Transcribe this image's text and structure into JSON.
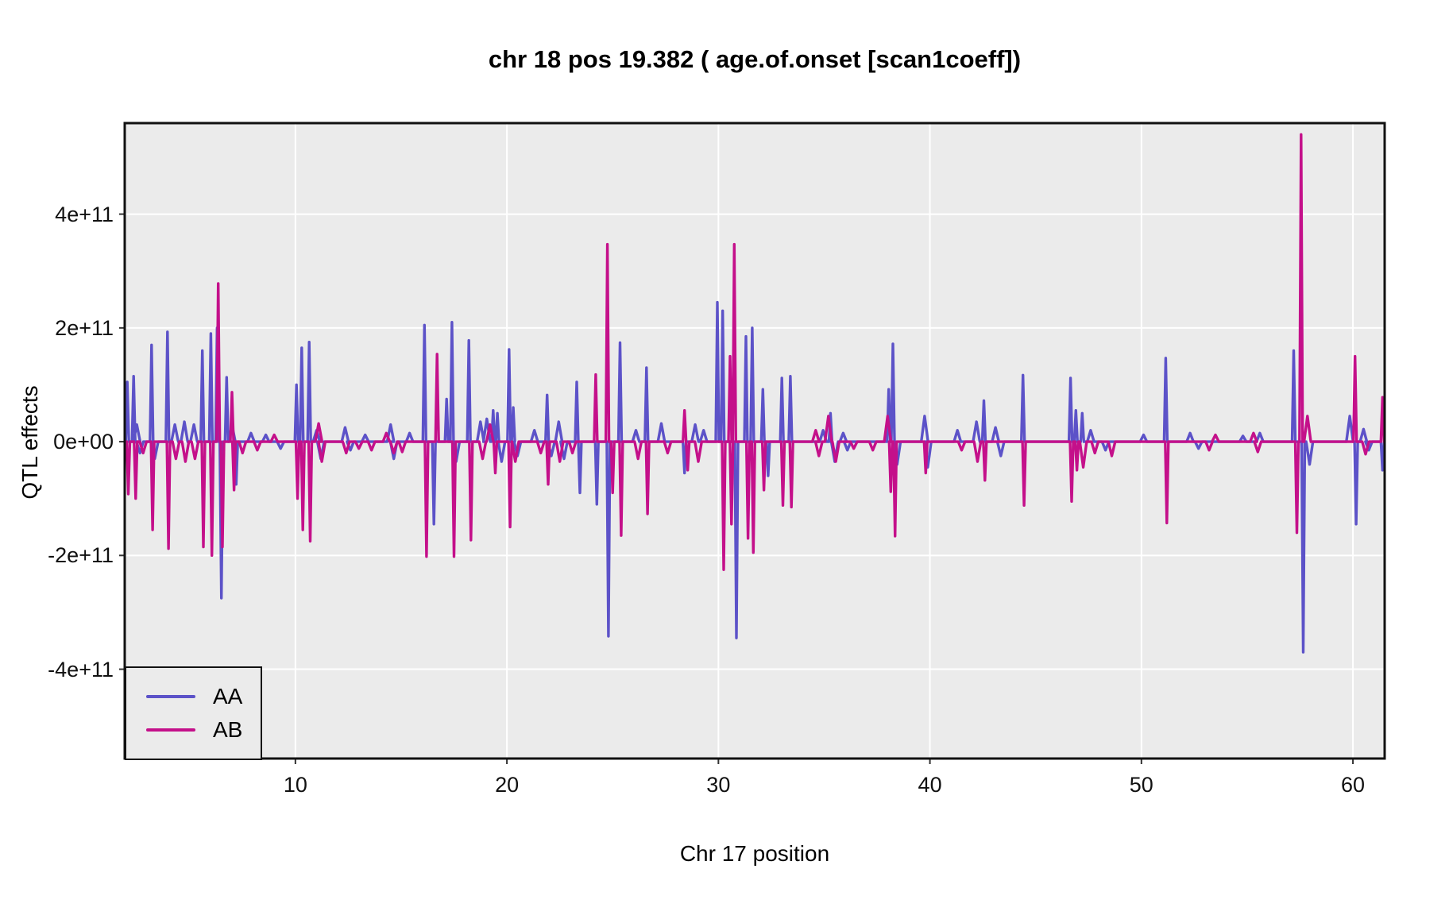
{
  "title": "chr 18 pos 19.382 ( age.of.onset  [scan1coeff])",
  "colors": {
    "background": "#FFFFFF",
    "panel_background": "#EBEBEB",
    "gridline": "#FFFFFF",
    "panel_border": "#111111",
    "tick_mark": "#333333",
    "text": "#000000",
    "series_aa": "#5C52C8",
    "series_ab": "#C4108A"
  },
  "chart_data": {
    "type": "line",
    "title": "chr 18 pos 19.382 ( age.of.onset  [scan1coeff])",
    "xlabel": "Chr 17 position",
    "ylabel": "QTL effects",
    "xlim": [
      1.93,
      61.5
    ],
    "ylim": [
      -557000000000.0,
      560000000000.0
    ],
    "x_ticks": [
      10,
      20,
      30,
      40,
      50,
      60
    ],
    "y_ticks": [
      {
        "value": 400000000000.0,
        "label": "4e+11"
      },
      {
        "value": 200000000000.0,
        "label": "2e+11"
      },
      {
        "value": 0,
        "label": "0e+00"
      },
      {
        "value": -200000000000.0,
        "label": "-2e+11"
      },
      {
        "value": -400000000000.0,
        "label": "-4e+11"
      }
    ],
    "grid": "major gridlines only, white on gray panel",
    "legend_position": "inside bottom-left",
    "baseline": 0,
    "series_encoding": "spikes = [x position in cM, peak QTL effect]; trace returns to 0 between spikes",
    "series": [
      {
        "name": "AA",
        "color": "#5C52C8",
        "spikes": [
          [
            2.05,
            105000000000.0
          ],
          [
            2.35,
            115000000000.0
          ],
          [
            2.5,
            30000000000.0
          ],
          [
            2.65,
            -20000000000.0
          ],
          [
            3.2,
            170000000000.0
          ],
          [
            3.35,
            -30000000000.0
          ],
          [
            3.95,
            193000000000.0
          ],
          [
            4.3,
            30000000000.0
          ],
          [
            4.75,
            35000000000.0
          ],
          [
            5.2,
            30000000000.0
          ],
          [
            5.6,
            160000000000.0
          ],
          [
            6.0,
            190000000000.0
          ],
          [
            6.3,
            200000000000.0
          ],
          [
            6.5,
            -275000000000.0
          ],
          [
            6.75,
            113000000000.0
          ],
          [
            7.0,
            30000000000.0
          ],
          [
            7.2,
            -75000000000.0
          ],
          [
            7.9,
            15000000000.0
          ],
          [
            8.6,
            12000000000.0
          ],
          [
            9.3,
            -12000000000.0
          ],
          [
            10.05,
            100000000000.0
          ],
          [
            10.3,
            165000000000.0
          ],
          [
            10.65,
            175000000000.0
          ],
          [
            11.0,
            20000000000.0
          ],
          [
            11.2,
            -30000000000.0
          ],
          [
            12.35,
            25000000000.0
          ],
          [
            12.6,
            -15000000000.0
          ],
          [
            13.3,
            12000000000.0
          ],
          [
            14.5,
            30000000000.0
          ],
          [
            14.65,
            -30000000000.0
          ],
          [
            15.4,
            15000000000.0
          ],
          [
            16.1,
            205000000000.0
          ],
          [
            16.55,
            -145000000000.0
          ],
          [
            17.15,
            75000000000.0
          ],
          [
            17.4,
            210000000000.0
          ],
          [
            17.6,
            -35000000000.0
          ],
          [
            18.2,
            178000000000.0
          ],
          [
            18.75,
            35000000000.0
          ],
          [
            19.05,
            40000000000.0
          ],
          [
            19.35,
            55000000000.0
          ],
          [
            19.55,
            50000000000.0
          ],
          [
            19.75,
            -35000000000.0
          ],
          [
            20.1,
            162000000000.0
          ],
          [
            20.3,
            60000000000.0
          ],
          [
            20.5,
            -25000000000.0
          ],
          [
            21.3,
            20000000000.0
          ],
          [
            21.9,
            82000000000.0
          ],
          [
            22.1,
            -25000000000.0
          ],
          [
            22.45,
            35000000000.0
          ],
          [
            22.7,
            -30000000000.0
          ],
          [
            23.3,
            105000000000.0
          ],
          [
            23.45,
            -90000000000.0
          ],
          [
            24.25,
            -110000000000.0
          ],
          [
            24.8,
            -342000000000.0
          ],
          [
            25.35,
            174000000000.0
          ],
          [
            26.1,
            20000000000.0
          ],
          [
            26.6,
            130000000000.0
          ],
          [
            27.3,
            32000000000.0
          ],
          [
            28.4,
            -55000000000.0
          ],
          [
            28.9,
            30000000000.0
          ],
          [
            29.3,
            20000000000.0
          ],
          [
            29.95,
            245000000000.0
          ],
          [
            30.2,
            230000000000.0
          ],
          [
            30.85,
            -345000000000.0
          ],
          [
            31.3,
            185000000000.0
          ],
          [
            31.6,
            200000000000.0
          ],
          [
            32.1,
            92000000000.0
          ],
          [
            32.35,
            -60000000000.0
          ],
          [
            33.0,
            112000000000.0
          ],
          [
            33.4,
            115000000000.0
          ],
          [
            34.95,
            20000000000.0
          ],
          [
            35.3,
            50000000000.0
          ],
          [
            35.5,
            -35000000000.0
          ],
          [
            35.9,
            15000000000.0
          ],
          [
            36.1,
            -15000000000.0
          ],
          [
            38.05,
            92000000000.0
          ],
          [
            38.25,
            172000000000.0
          ],
          [
            38.45,
            -40000000000.0
          ],
          [
            39.75,
            45000000000.0
          ],
          [
            39.9,
            -45000000000.0
          ],
          [
            41.3,
            20000000000.0
          ],
          [
            42.2,
            35000000000.0
          ],
          [
            42.55,
            72000000000.0
          ],
          [
            43.1,
            25000000000.0
          ],
          [
            43.35,
            -25000000000.0
          ],
          [
            44.4,
            117000000000.0
          ],
          [
            46.65,
            112000000000.0
          ],
          [
            46.9,
            55000000000.0
          ],
          [
            47.2,
            50000000000.0
          ],
          [
            47.6,
            20000000000.0
          ],
          [
            48.3,
            -15000000000.0
          ],
          [
            50.1,
            12000000000.0
          ],
          [
            51.15,
            147000000000.0
          ],
          [
            52.3,
            15000000000.0
          ],
          [
            52.7,
            -12000000000.0
          ],
          [
            54.8,
            10000000000.0
          ],
          [
            55.6,
            15000000000.0
          ],
          [
            57.2,
            160000000000.0
          ],
          [
            57.65,
            -370000000000.0
          ],
          [
            57.95,
            -40000000000.0
          ],
          [
            59.85,
            45000000000.0
          ],
          [
            60.15,
            -145000000000.0
          ],
          [
            60.5,
            22000000000.0
          ],
          [
            60.75,
            -15000000000.0
          ],
          [
            61.4,
            -50000000000.0
          ]
        ]
      },
      {
        "name": "AB",
        "color": "#C4108A",
        "spikes": [
          [
            2.1,
            -92000000000.0
          ],
          [
            2.45,
            -100000000000.0
          ],
          [
            2.8,
            -20000000000.0
          ],
          [
            3.25,
            -155000000000.0
          ],
          [
            4.0,
            -188000000000.0
          ],
          [
            4.35,
            -30000000000.0
          ],
          [
            4.8,
            -35000000000.0
          ],
          [
            5.25,
            -30000000000.0
          ],
          [
            5.65,
            -185000000000.0
          ],
          [
            6.05,
            -200000000000.0
          ],
          [
            6.35,
            278000000000.0
          ],
          [
            6.55,
            -185000000000.0
          ],
          [
            7.0,
            87000000000.0
          ],
          [
            7.1,
            -85000000000.0
          ],
          [
            7.5,
            -20000000000.0
          ],
          [
            8.2,
            -15000000000.0
          ],
          [
            9.0,
            12000000000.0
          ],
          [
            10.1,
            -100000000000.0
          ],
          [
            10.35,
            -155000000000.0
          ],
          [
            10.7,
            -175000000000.0
          ],
          [
            11.1,
            32000000000.0
          ],
          [
            11.25,
            -35000000000.0
          ],
          [
            12.4,
            -20000000000.0
          ],
          [
            13.0,
            -12000000000.0
          ],
          [
            13.6,
            -15000000000.0
          ],
          [
            14.3,
            15000000000.0
          ],
          [
            14.65,
            -20000000000.0
          ],
          [
            15.05,
            -18000000000.0
          ],
          [
            16.2,
            -202000000000.0
          ],
          [
            16.7,
            154000000000.0
          ],
          [
            17.5,
            -202000000000.0
          ],
          [
            18.3,
            -173000000000.0
          ],
          [
            18.85,
            -30000000000.0
          ],
          [
            19.2,
            30000000000.0
          ],
          [
            19.45,
            -55000000000.0
          ],
          [
            20.15,
            -150000000000.0
          ],
          [
            20.4,
            -35000000000.0
          ],
          [
            21.6,
            -20000000000.0
          ],
          [
            21.95,
            -75000000000.0
          ],
          [
            22.5,
            -35000000000.0
          ],
          [
            23.1,
            -20000000000.0
          ],
          [
            24.2,
            118000000000.0
          ],
          [
            24.75,
            347000000000.0
          ],
          [
            25.0,
            -90000000000.0
          ],
          [
            25.4,
            -165000000000.0
          ],
          [
            26.2,
            -30000000000.0
          ],
          [
            26.65,
            -127000000000.0
          ],
          [
            27.6,
            -20000000000.0
          ],
          [
            28.4,
            55000000000.0
          ],
          [
            28.55,
            -50000000000.0
          ],
          [
            29.05,
            -35000000000.0
          ],
          [
            30.25,
            -225000000000.0
          ],
          [
            30.55,
            150000000000.0
          ],
          [
            30.62,
            -145000000000.0
          ],
          [
            30.75,
            347000000000.0
          ],
          [
            31.4,
            -170000000000.0
          ],
          [
            31.65,
            -195000000000.0
          ],
          [
            32.15,
            -85000000000.0
          ],
          [
            33.05,
            -112000000000.0
          ],
          [
            33.45,
            -115000000000.0
          ],
          [
            34.6,
            20000000000.0
          ],
          [
            34.75,
            -25000000000.0
          ],
          [
            35.2,
            45000000000.0
          ],
          [
            35.55,
            -35000000000.0
          ],
          [
            36.4,
            -12000000000.0
          ],
          [
            37.3,
            -15000000000.0
          ],
          [
            38.0,
            45000000000.0
          ],
          [
            38.15,
            -88000000000.0
          ],
          [
            38.35,
            -166000000000.0
          ],
          [
            39.8,
            -55000000000.0
          ],
          [
            41.5,
            -15000000000.0
          ],
          [
            42.25,
            -35000000000.0
          ],
          [
            42.6,
            -68000000000.0
          ],
          [
            44.45,
            -112000000000.0
          ],
          [
            46.7,
            -105000000000.0
          ],
          [
            46.95,
            -50000000000.0
          ],
          [
            47.25,
            -45000000000.0
          ],
          [
            47.8,
            -20000000000.0
          ],
          [
            48.6,
            -25000000000.0
          ],
          [
            51.2,
            -143000000000.0
          ],
          [
            53.2,
            -15000000000.0
          ],
          [
            53.5,
            12000000000.0
          ],
          [
            55.3,
            15000000000.0
          ],
          [
            55.5,
            -18000000000.0
          ],
          [
            57.35,
            -160000000000.0
          ],
          [
            57.55,
            540000000000.0
          ],
          [
            57.85,
            45000000000.0
          ],
          [
            60.1,
            150000000000.0
          ],
          [
            60.6,
            -22000000000.0
          ],
          [
            61.4,
            78000000000.0
          ]
        ]
      }
    ]
  },
  "legend": {
    "entries": [
      {
        "label": "AA",
        "color": "#5C52C8"
      },
      {
        "label": "AB",
        "color": "#C4108A"
      }
    ]
  }
}
